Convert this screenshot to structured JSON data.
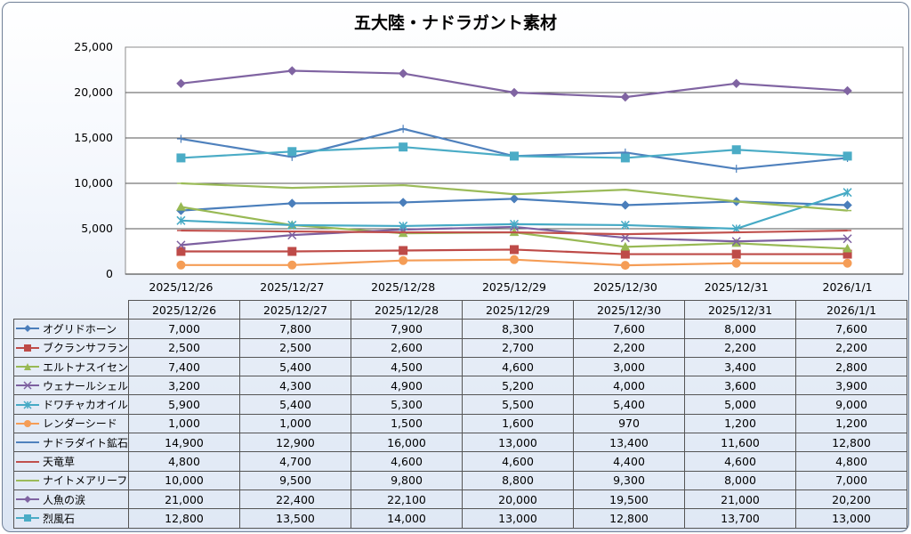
{
  "chart_data": {
    "type": "line",
    "title": "五大陸・ナドラガント素材",
    "categories": [
      "2025/12/26",
      "2025/12/27",
      "2025/12/28",
      "2025/12/29",
      "2025/12/30",
      "2025/12/31",
      "2026/1/1"
    ],
    "ylim": [
      0,
      25000
    ],
    "yticks": [
      "0",
      "5,000",
      "10,000",
      "15,000",
      "20,000",
      "25,000"
    ],
    "grid": true,
    "legend": "data-table",
    "series": [
      {
        "name": "オグリドホーン",
        "color": "#4a7ebb",
        "marker": "diamond",
        "values": [
          7000,
          7800,
          7900,
          8300,
          7600,
          8000,
          7600
        ],
        "labels": [
          "7,000",
          "7,800",
          "7,900",
          "8,300",
          "7,600",
          "8,000",
          "7,600"
        ]
      },
      {
        "name": "ブクランサフラン",
        "color": "#be4b48",
        "marker": "square",
        "values": [
          2500,
          2500,
          2600,
          2700,
          2200,
          2200,
          2200
        ],
        "labels": [
          "2,500",
          "2,500",
          "2,600",
          "2,700",
          "2,200",
          "2,200",
          "2,200"
        ]
      },
      {
        "name": "エルトナスイセン",
        "color": "#98b954",
        "marker": "triangle",
        "values": [
          7400,
          5400,
          4500,
          4600,
          3000,
          3400,
          2800
        ],
        "labels": [
          "7,400",
          "5,400",
          "4,500",
          "4,600",
          "3,000",
          "3,400",
          "2,800"
        ]
      },
      {
        "name": "ウェナールシェル",
        "color": "#7d60a0",
        "marker": "x",
        "values": [
          3200,
          4300,
          4900,
          5200,
          4000,
          3600,
          3900
        ],
        "labels": [
          "3,200",
          "4,300",
          "4,900",
          "5,200",
          "4,000",
          "3,600",
          "3,900"
        ]
      },
      {
        "name": "ドワチャカオイル",
        "color": "#46aac5",
        "marker": "star",
        "values": [
          5900,
          5400,
          5300,
          5500,
          5400,
          5000,
          9000
        ],
        "labels": [
          "5,900",
          "5,400",
          "5,300",
          "5,500",
          "5,400",
          "5,000",
          "9,000"
        ]
      },
      {
        "name": "レンダーシード",
        "color": "#f59d56",
        "marker": "circle",
        "values": [
          1000,
          1000,
          1500,
          1600,
          970,
          1200,
          1200
        ],
        "labels": [
          "1,000",
          "1,000",
          "1,500",
          "1,600",
          "970",
          "1,200",
          "1,200"
        ]
      },
      {
        "name": "ナドラダイト鉱石",
        "color": "#4f81bd",
        "marker": "plus",
        "values": [
          14900,
          12900,
          16000,
          13000,
          13400,
          11600,
          12800
        ],
        "labels": [
          "14,900",
          "12,900",
          "16,000",
          "13,000",
          "13,400",
          "11,600",
          "12,800"
        ]
      },
      {
        "name": "天竜草",
        "color": "#c0504d",
        "marker": "dash",
        "values": [
          4800,
          4700,
          4600,
          4600,
          4400,
          4600,
          4800
        ],
        "labels": [
          "4,800",
          "4,700",
          "4,600",
          "4,600",
          "4,400",
          "4,600",
          "4,800"
        ]
      },
      {
        "name": "ナイトメアリーフ",
        "color": "#9bbb59",
        "marker": "dash",
        "values": [
          10000,
          9500,
          9800,
          8800,
          9300,
          8000,
          7000
        ],
        "labels": [
          "10,000",
          "9,500",
          "9,800",
          "8,800",
          "9,300",
          "8,000",
          "7,000"
        ]
      },
      {
        "name": "人魚の涙",
        "color": "#8064a2",
        "marker": "diamond",
        "values": [
          21000,
          22400,
          22100,
          20000,
          19500,
          21000,
          20200
        ],
        "labels": [
          "21,000",
          "22,400",
          "22,100",
          "20,000",
          "19,500",
          "21,000",
          "20,200"
        ]
      },
      {
        "name": "烈風石",
        "color": "#4bacc6",
        "marker": "square",
        "values": [
          12800,
          13500,
          14000,
          13000,
          12800,
          13700,
          13000
        ],
        "labels": [
          "12,800",
          "13,500",
          "14,000",
          "13,000",
          "12,800",
          "13,700",
          "13,000"
        ]
      }
    ]
  }
}
